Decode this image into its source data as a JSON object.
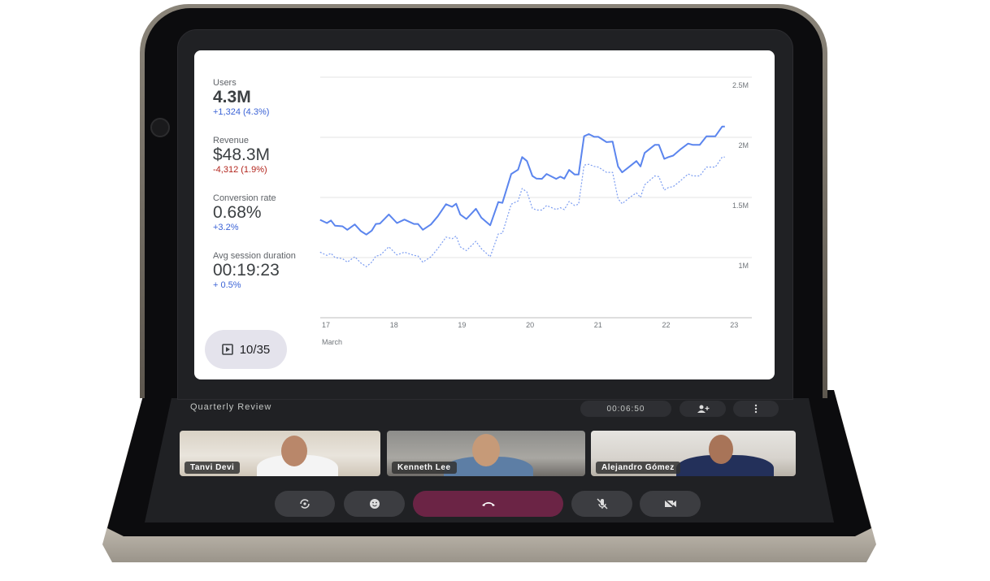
{
  "dashboard": {
    "metrics": [
      {
        "label": "Users",
        "value": "4.3M",
        "change": "+1,324 (4.3%)",
        "trend": "up"
      },
      {
        "label": "Revenue",
        "value": "$48.3M",
        "change": "-4,312 (1.9%)",
        "trend": "down"
      },
      {
        "label": "Conversion rate",
        "value": "0.68%",
        "change": "+3.2%",
        "trend": "up"
      },
      {
        "label": "Avg session duration",
        "value": "00:19:23",
        "change": "+ 0.5%",
        "trend": "up"
      }
    ],
    "slide_counter": "10/35",
    "slide_icon": "play-box-icon",
    "colors": {
      "up": "#3b63d6",
      "down": "#b3261e",
      "series": "#5b85ee"
    }
  },
  "chart_data": {
    "type": "line",
    "x_tick_labels": [
      "17",
      "18",
      "19",
      "20",
      "21",
      "22",
      "23"
    ],
    "x_ticks": [
      17,
      18,
      19,
      20,
      21,
      22,
      23
    ],
    "xlabel": "March",
    "y_tick_labels": [
      "1M",
      "1.5M",
      "2M",
      "2.5M"
    ],
    "y_ticks": [
      1.0,
      1.5,
      2.0,
      2.5
    ],
    "ylim": [
      0.5,
      2.5
    ],
    "xlim": [
      16.95,
      23
    ],
    "grid": true,
    "x": [
      16.95,
      17.05,
      17.11,
      17.17,
      17.28,
      17.35,
      17.46,
      17.55,
      17.63,
      17.71,
      17.77,
      17.83,
      17.96,
      18.08,
      18.19,
      18.33,
      18.39,
      18.46,
      18.58,
      18.68,
      18.8,
      18.89,
      18.95,
      19.01,
      19.1,
      19.24,
      19.32,
      19.45,
      19.57,
      19.63,
      19.76,
      19.86,
      19.92,
      19.99,
      20.07,
      20.13,
      20.21,
      20.28,
      20.42,
      20.48,
      20.54,
      20.61,
      20.69,
      20.75,
      20.83,
      20.9,
      20.98,
      21.04,
      21.16,
      21.25,
      21.33,
      21.39,
      21.5,
      21.6,
      21.66,
      21.72,
      21.87,
      21.93,
      22.01,
      22.07,
      22.14,
      22.24,
      22.36,
      22.43,
      22.53,
      22.63,
      22.76,
      22.86,
      22.9
    ],
    "series": [
      {
        "style": "solid",
        "values": [
          1.314,
          1.287,
          1.309,
          1.265,
          1.26,
          1.231,
          1.276,
          1.22,
          1.191,
          1.224,
          1.28,
          1.283,
          1.359,
          1.287,
          1.316,
          1.28,
          1.28,
          1.231,
          1.276,
          1.343,
          1.444,
          1.422,
          1.448,
          1.359,
          1.321,
          1.406,
          1.332,
          1.269,
          1.462,
          1.455,
          1.695,
          1.731,
          1.836,
          1.803,
          1.679,
          1.657,
          1.655,
          1.695,
          1.655,
          1.673,
          1.657,
          1.729,
          1.691,
          1.691,
          2.009,
          2.027,
          2.004,
          2.004,
          1.96,
          1.964,
          1.758,
          1.709,
          1.758,
          1.803,
          1.758,
          1.87,
          1.937,
          1.937,
          1.821,
          1.836,
          1.848,
          1.897,
          1.948,
          1.937,
          1.937,
          2.009,
          2.009,
          2.09,
          2.09
        ]
      },
      {
        "style": "dashed",
        "values": [
          1.045,
          1.018,
          1.036,
          1.0,
          0.991,
          0.962,
          1.007,
          0.955,
          0.924,
          0.962,
          1.013,
          1.018,
          1.09,
          1.022,
          1.045,
          1.018,
          1.013,
          0.962,
          1.007,
          1.074,
          1.17,
          1.157,
          1.179,
          1.09,
          1.058,
          1.135,
          1.074,
          1.007,
          1.197,
          1.202,
          1.444,
          1.471,
          1.574,
          1.545,
          1.41,
          1.395,
          1.395,
          1.433,
          1.399,
          1.415,
          1.399,
          1.466,
          1.433,
          1.444,
          1.769,
          1.776,
          1.758,
          1.753,
          1.709,
          1.709,
          1.489,
          1.448,
          1.5,
          1.538,
          1.5,
          1.605,
          1.679,
          1.673,
          1.561,
          1.583,
          1.59,
          1.635,
          1.695,
          1.679,
          1.679,
          1.753,
          1.753,
          1.836,
          1.836
        ]
      }
    ]
  },
  "call": {
    "title": "Quarterly Review",
    "timer": "00:06:50",
    "add_person_icon": "person-add-icon",
    "more_icon": "more-vert-icon",
    "participants": [
      {
        "name": "Tanvi Devi"
      },
      {
        "name": "Kenneth Lee"
      },
      {
        "name": "Alejandro Gómez"
      }
    ],
    "controls": [
      "flip-camera-icon",
      "emoji-icon",
      "end-call-icon",
      "mic-off-icon",
      "camera-off-icon"
    ],
    "end_call_color": "#6b2445"
  }
}
